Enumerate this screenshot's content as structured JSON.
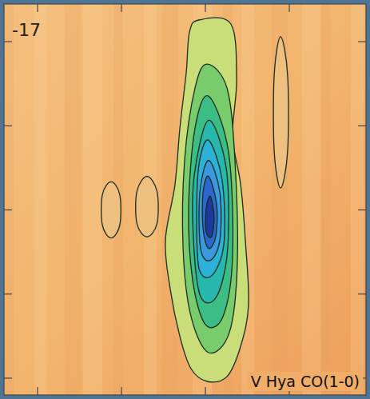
{
  "chart_data": {
    "type": "contour",
    "title": "V Hya CO(1-0)",
    "annotations": [
      {
        "text": "-17"
      }
    ],
    "xlim": [
      12,
      -9.57
    ],
    "ylim": [
      -11,
      12.24
    ],
    "xticks": [
      10,
      5,
      0,
      -5
    ],
    "yticks": [
      -10,
      -5,
      0,
      5,
      10
    ],
    "tick_labels": false,
    "grid": false,
    "contours": [
      {
        "level": 1,
        "points": [
          [
            0.38,
            11.29
          ],
          [
            -1.52,
            11.05
          ],
          [
            -1.86,
            7.71
          ],
          [
            -1.62,
            4.38
          ],
          [
            -2.1,
            1.52
          ],
          [
            -2.38,
            -1.81
          ],
          [
            -2.57,
            -5.62
          ],
          [
            -2.1,
            -8.1
          ],
          [
            -1.29,
            -9.9
          ],
          [
            -0.1,
            -10.19
          ],
          [
            0.86,
            -9.43
          ],
          [
            1.52,
            -7.52
          ],
          [
            2.1,
            -4.67
          ],
          [
            2.38,
            -1.81
          ],
          [
            1.81,
            1.52
          ],
          [
            1.52,
            4.86
          ],
          [
            1.14,
            8.19
          ],
          [
            0.95,
            10.57
          ]
        ]
      },
      {
        "level": 1,
        "points": [
          [
            5.62,
            1.67
          ],
          [
            5.1,
            0.9
          ],
          [
            5.1,
            -0.9
          ],
          [
            5.62,
            -1.67
          ],
          [
            6.14,
            -0.9
          ],
          [
            6.14,
            0.9
          ]
        ]
      },
      {
        "level": 1,
        "points": [
          [
            3.48,
            2.0
          ],
          [
            2.88,
            1.1
          ],
          [
            2.88,
            -0.8
          ],
          [
            3.48,
            -1.6
          ],
          [
            4.08,
            -0.8
          ],
          [
            4.08,
            1.1
          ]
        ]
      },
      {
        "level": 1,
        "points": [
          [
            -4.48,
            10.3
          ],
          [
            -4.9,
            8
          ],
          [
            -4.9,
            3.5
          ],
          [
            -4.48,
            1.3
          ],
          [
            -4.1,
            3.5
          ],
          [
            -4.1,
            8
          ]
        ]
      },
      {
        "level": 2,
        "points": [
          [
            -0.1,
            8.67
          ],
          [
            -1.29,
            7.24
          ],
          [
            -1.76,
            2.95
          ],
          [
            -1.9,
            -3.24
          ],
          [
            -1.43,
            -7.29
          ],
          [
            -0.19,
            -8.48
          ],
          [
            0.86,
            -6.33
          ],
          [
            1.33,
            -2.29
          ],
          [
            1.24,
            2.95
          ],
          [
            0.62,
            7.24
          ]
        ]
      },
      {
        "level": 3,
        "points": [
          [
            -0.19,
            6.76
          ],
          [
            -1.38,
            3.43
          ],
          [
            -1.62,
            -2.76
          ],
          [
            -1.05,
            -6.33
          ],
          [
            0,
            -6.81
          ],
          [
            0.76,
            -4.19
          ],
          [
            1.0,
            0.1
          ],
          [
            0.62,
            4.86
          ]
        ]
      },
      {
        "level": 4,
        "points": [
          [
            -0.19,
            5.33
          ],
          [
            -1.24,
            2.48
          ],
          [
            -1.33,
            -2.29
          ],
          [
            -0.67,
            -5.14
          ],
          [
            0.29,
            -5.14
          ],
          [
            0.71,
            -1.81
          ],
          [
            0.67,
            2.0
          ]
        ]
      },
      {
        "level": 5,
        "points": [
          [
            -0.19,
            4.14
          ],
          [
            -1.0,
            1.76
          ],
          [
            -1.1,
            -2.05
          ],
          [
            -0.38,
            -3.9
          ],
          [
            0.38,
            -3.48
          ],
          [
            0.52,
            -0.38
          ],
          [
            0.38,
            2.71
          ]
        ]
      },
      {
        "level": 6,
        "points": [
          [
            -0.19,
            2.95
          ],
          [
            -0.86,
            1.05
          ],
          [
            -0.86,
            -1.81
          ],
          [
            -0.29,
            -3.0
          ],
          [
            0.29,
            -2.29
          ],
          [
            0.33,
            1.05
          ]
        ]
      },
      {
        "level": 7,
        "points": [
          [
            -0.19,
            2.0
          ],
          [
            -0.67,
            0.33
          ],
          [
            -0.62,
            -1.57
          ],
          [
            -0.19,
            -2.29
          ],
          [
            0.14,
            -1.1
          ],
          [
            0.14,
            1.05
          ]
        ]
      },
      {
        "level": 8,
        "points": [
          [
            -0.29,
            0.81
          ],
          [
            -0.52,
            -0.38
          ],
          [
            -0.38,
            -1.57
          ],
          [
            -0.05,
            -1.33
          ],
          [
            -0.05,
            0.1
          ]
        ]
      }
    ],
    "colors": [
      "#c9de78",
      "#eec080",
      "#eec080",
      "#eec080",
      "#78cc6c",
      "#3dbd86",
      "#26b7ad",
      "#2cb2d8",
      "#3a98df",
      "#2a68cc",
      "#1c3a9e"
    ]
  }
}
